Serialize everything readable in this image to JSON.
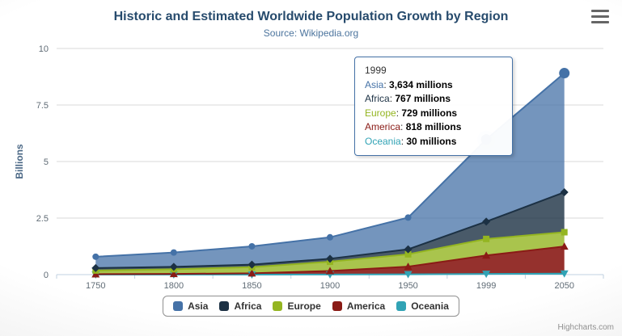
{
  "chart_data": {
    "type": "area",
    "stacking": "normal",
    "title": "Historic and Estimated Worldwide Population Growth by Region",
    "subtitle": "Source: Wikipedia.org",
    "ylabel": "Billions",
    "unit": "millions",
    "categories": [
      "1750",
      "1800",
      "1850",
      "1900",
      "1950",
      "1999",
      "2050"
    ],
    "yticks": [
      0,
      2.5,
      5,
      7.5,
      10
    ],
    "ylim": [
      0,
      10
    ],
    "grid": true,
    "legend_position": "bottom",
    "series": [
      {
        "name": "Asia",
        "color": "#4572a7",
        "marker": "circle",
        "values": [
          502,
          635,
          809,
          947,
          1402,
          3634,
          5268
        ]
      },
      {
        "name": "Africa",
        "color": "#1c3144",
        "marker": "diamond",
        "values": [
          106,
          107,
          111,
          133,
          221,
          767,
          1766
        ]
      },
      {
        "name": "Europe",
        "color": "#94b521",
        "marker": "square",
        "values": [
          163,
          203,
          276,
          408,
          547,
          729,
          628
        ]
      },
      {
        "name": "America",
        "color": "#8a1b16",
        "marker": "triangle",
        "values": [
          18,
          31,
          54,
          156,
          339,
          818,
          1201
        ]
      },
      {
        "name": "Oceania",
        "color": "#31a3b5",
        "marker": "triangle-down",
        "values": [
          2,
          2,
          2,
          6,
          13,
          30,
          46
        ]
      }
    ]
  },
  "tooltip": {
    "header": "1999",
    "rows": [
      {
        "name": "Asia",
        "value": "3,634 millions"
      },
      {
        "name": "Africa",
        "value": "767 millions"
      },
      {
        "name": "Europe",
        "value": "729 millions"
      },
      {
        "name": "America",
        "value": "818 millions"
      },
      {
        "name": "Oceania",
        "value": "30 millions"
      }
    ]
  },
  "credits": "Highcharts.com"
}
